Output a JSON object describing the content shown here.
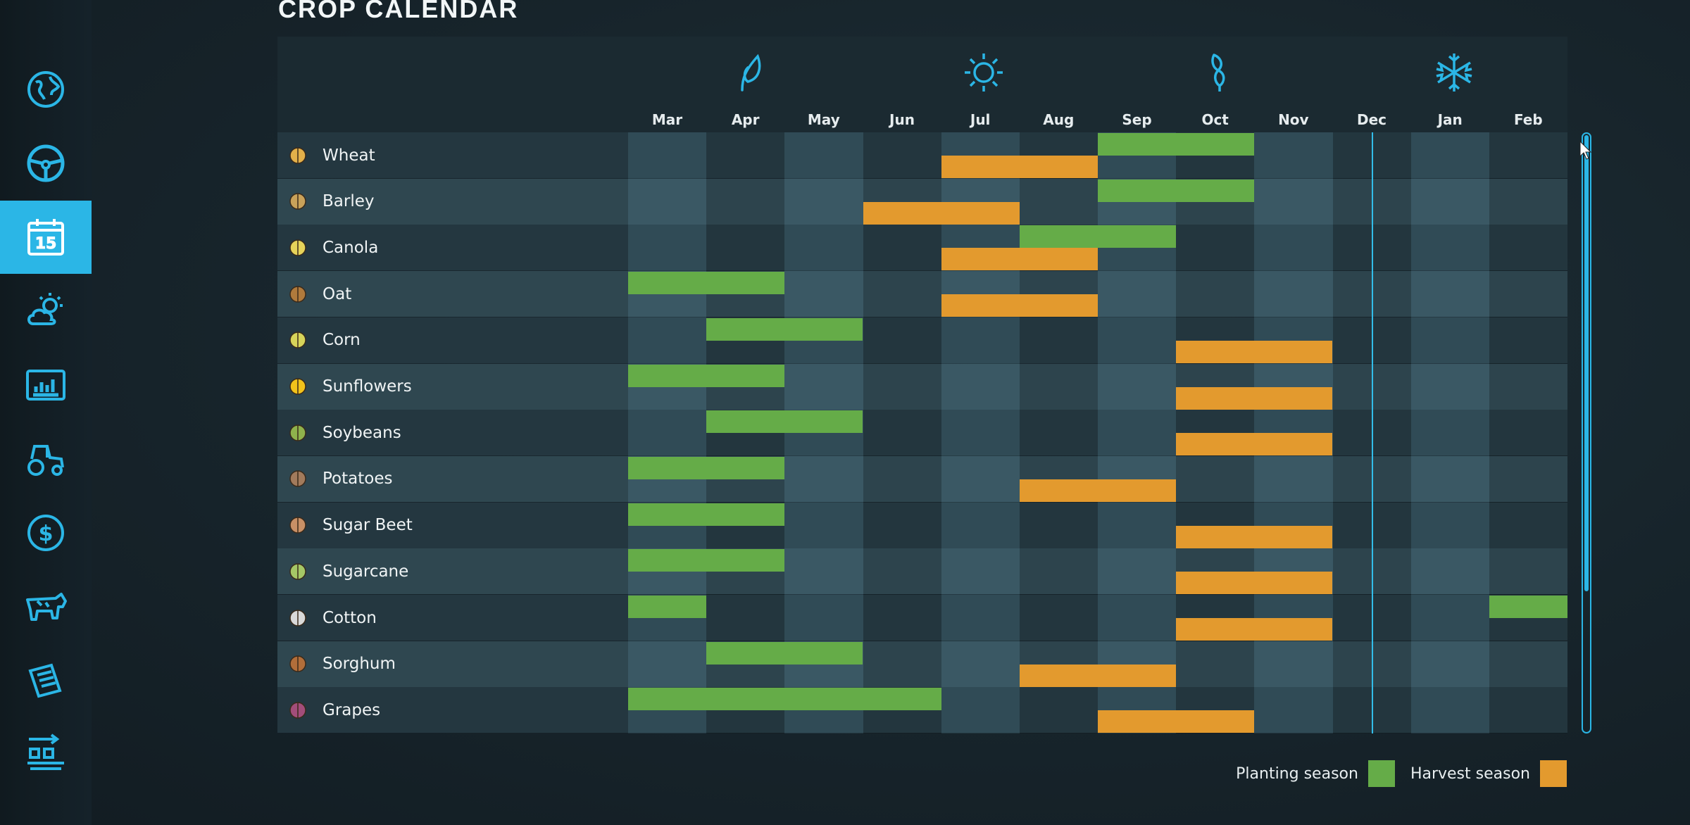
{
  "page": {
    "title": "CROP CALENDAR"
  },
  "sidebar": {
    "items": [
      {
        "icon": "globe-icon",
        "active": false
      },
      {
        "icon": "steering-wheel-icon",
        "active": false
      },
      {
        "icon": "calendar-icon",
        "label": "15",
        "active": true
      },
      {
        "icon": "weather-icon",
        "active": false
      },
      {
        "icon": "statistics-icon",
        "active": false
      },
      {
        "icon": "tractor-icon",
        "active": false
      },
      {
        "icon": "finance-icon",
        "active": false
      },
      {
        "icon": "cow-icon",
        "active": false
      },
      {
        "icon": "contracts-icon",
        "active": false
      },
      {
        "icon": "production-icon",
        "active": false
      }
    ]
  },
  "calendar": {
    "months": [
      "Mar",
      "Apr",
      "May",
      "Jun",
      "Jul",
      "Aug",
      "Sep",
      "Oct",
      "Nov",
      "Dec",
      "Jan",
      "Feb"
    ],
    "seasons": [
      {
        "icon": "spring-leaf-icon",
        "month_index": 1
      },
      {
        "icon": "summer-sun-icon",
        "month_index": 4
      },
      {
        "icon": "autumn-leaves-icon",
        "month_index": 7
      },
      {
        "icon": "winter-snowflake-icon",
        "month_index": 10
      }
    ],
    "current_month_index": 9,
    "crops": [
      {
        "name": "Wheat",
        "icon": "wheat-icon",
        "planting": [
          [
            6,
            8
          ]
        ],
        "harvest": [
          [
            4,
            6
          ]
        ]
      },
      {
        "name": "Barley",
        "icon": "barley-icon",
        "planting": [
          [
            6,
            8
          ]
        ],
        "harvest": [
          [
            3,
            5
          ]
        ]
      },
      {
        "name": "Canola",
        "icon": "canola-icon",
        "planting": [
          [
            5,
            7
          ]
        ],
        "harvest": [
          [
            4,
            6
          ]
        ]
      },
      {
        "name": "Oat",
        "icon": "oat-icon",
        "planting": [
          [
            0,
            2
          ]
        ],
        "harvest": [
          [
            4,
            6
          ]
        ]
      },
      {
        "name": "Corn",
        "icon": "corn-icon",
        "planting": [
          [
            1,
            3
          ]
        ],
        "harvest": [
          [
            7,
            9
          ]
        ]
      },
      {
        "name": "Sunflowers",
        "icon": "sunflower-icon",
        "planting": [
          [
            0,
            2
          ]
        ],
        "harvest": [
          [
            7,
            9
          ]
        ]
      },
      {
        "name": "Soybeans",
        "icon": "soybeans-icon",
        "planting": [
          [
            1,
            3
          ]
        ],
        "harvest": [
          [
            7,
            9
          ]
        ]
      },
      {
        "name": "Potatoes",
        "icon": "potato-icon",
        "planting": [
          [
            0,
            2
          ]
        ],
        "harvest": [
          [
            5,
            7
          ]
        ]
      },
      {
        "name": "Sugar Beet",
        "icon": "sugar-beet-icon",
        "planting": [
          [
            0,
            2
          ]
        ],
        "harvest": [
          [
            7,
            9
          ]
        ]
      },
      {
        "name": "Sugarcane",
        "icon": "sugarcane-icon",
        "planting": [
          [
            0,
            2
          ]
        ],
        "harvest": [
          [
            7,
            9
          ]
        ]
      },
      {
        "name": "Cotton",
        "icon": "cotton-icon",
        "planting": [
          [
            0,
            1
          ],
          [
            11,
            12
          ]
        ],
        "harvest": [
          [
            7,
            9
          ]
        ]
      },
      {
        "name": "Sorghum",
        "icon": "sorghum-icon",
        "planting": [
          [
            1,
            3
          ]
        ],
        "harvest": [
          [
            5,
            7
          ]
        ]
      },
      {
        "name": "Grapes",
        "icon": "grapes-icon",
        "planting": [
          [
            0,
            4
          ]
        ],
        "harvest": [
          [
            6,
            8
          ]
        ]
      }
    ]
  },
  "legend": {
    "planting_label": "Planting season",
    "harvest_label": "Harvest season",
    "planting_color": "#65ac48",
    "harvest_color": "#e39a2e"
  }
}
